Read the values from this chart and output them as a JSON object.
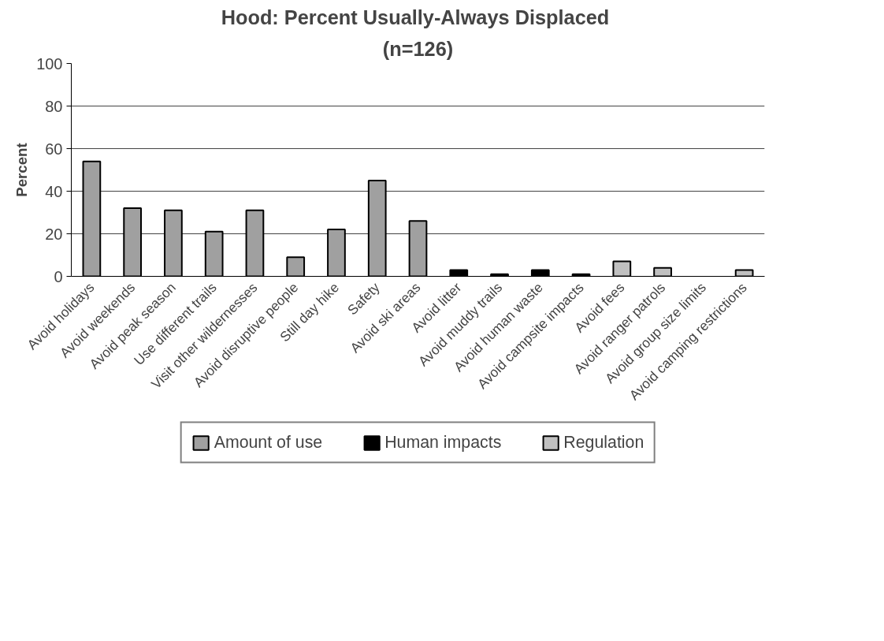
{
  "chart_data": {
    "type": "bar",
    "title": "Hood:  Percent Usually-Always Displaced",
    "subtitle": "(n=126)",
    "ylabel": "Percent",
    "categories": [
      "Avoid holidays",
      "Avoid weekends",
      "Avoid peak season",
      "Use different trails",
      "Visit other wildernesses",
      "Avoid disruptive people",
      "Still day hike",
      "Safety",
      "Avoid ski areas",
      "Avoid litter",
      "Avoid muddy trails",
      "Avoid human waste",
      "Avoid campsite impacts",
      "Avoid fees",
      "Avoid ranger patrols",
      "Avoid group size limits",
      "Avoid camping restrictions"
    ],
    "series": [
      {
        "name": "Amount of use",
        "color": "#a0a0a0",
        "values": [
          54,
          32,
          31,
          21,
          31,
          9,
          22,
          45,
          26,
          null,
          null,
          null,
          null,
          null,
          null,
          null,
          null
        ]
      },
      {
        "name": "Human impacts",
        "color": "#000000",
        "values": [
          null,
          null,
          null,
          null,
          null,
          null,
          null,
          null,
          null,
          3,
          1,
          3,
          1,
          null,
          null,
          null,
          null
        ]
      },
      {
        "name": "Regulation",
        "color": "#c0c0c0",
        "values": [
          null,
          null,
          null,
          null,
          null,
          null,
          null,
          null,
          null,
          null,
          null,
          null,
          null,
          7,
          4,
          0,
          3
        ]
      }
    ],
    "ylim": [
      0,
      100
    ],
    "yticks": [
      0,
      20,
      40,
      60,
      80,
      100
    ],
    "grid": "y",
    "legend": "bottom"
  }
}
